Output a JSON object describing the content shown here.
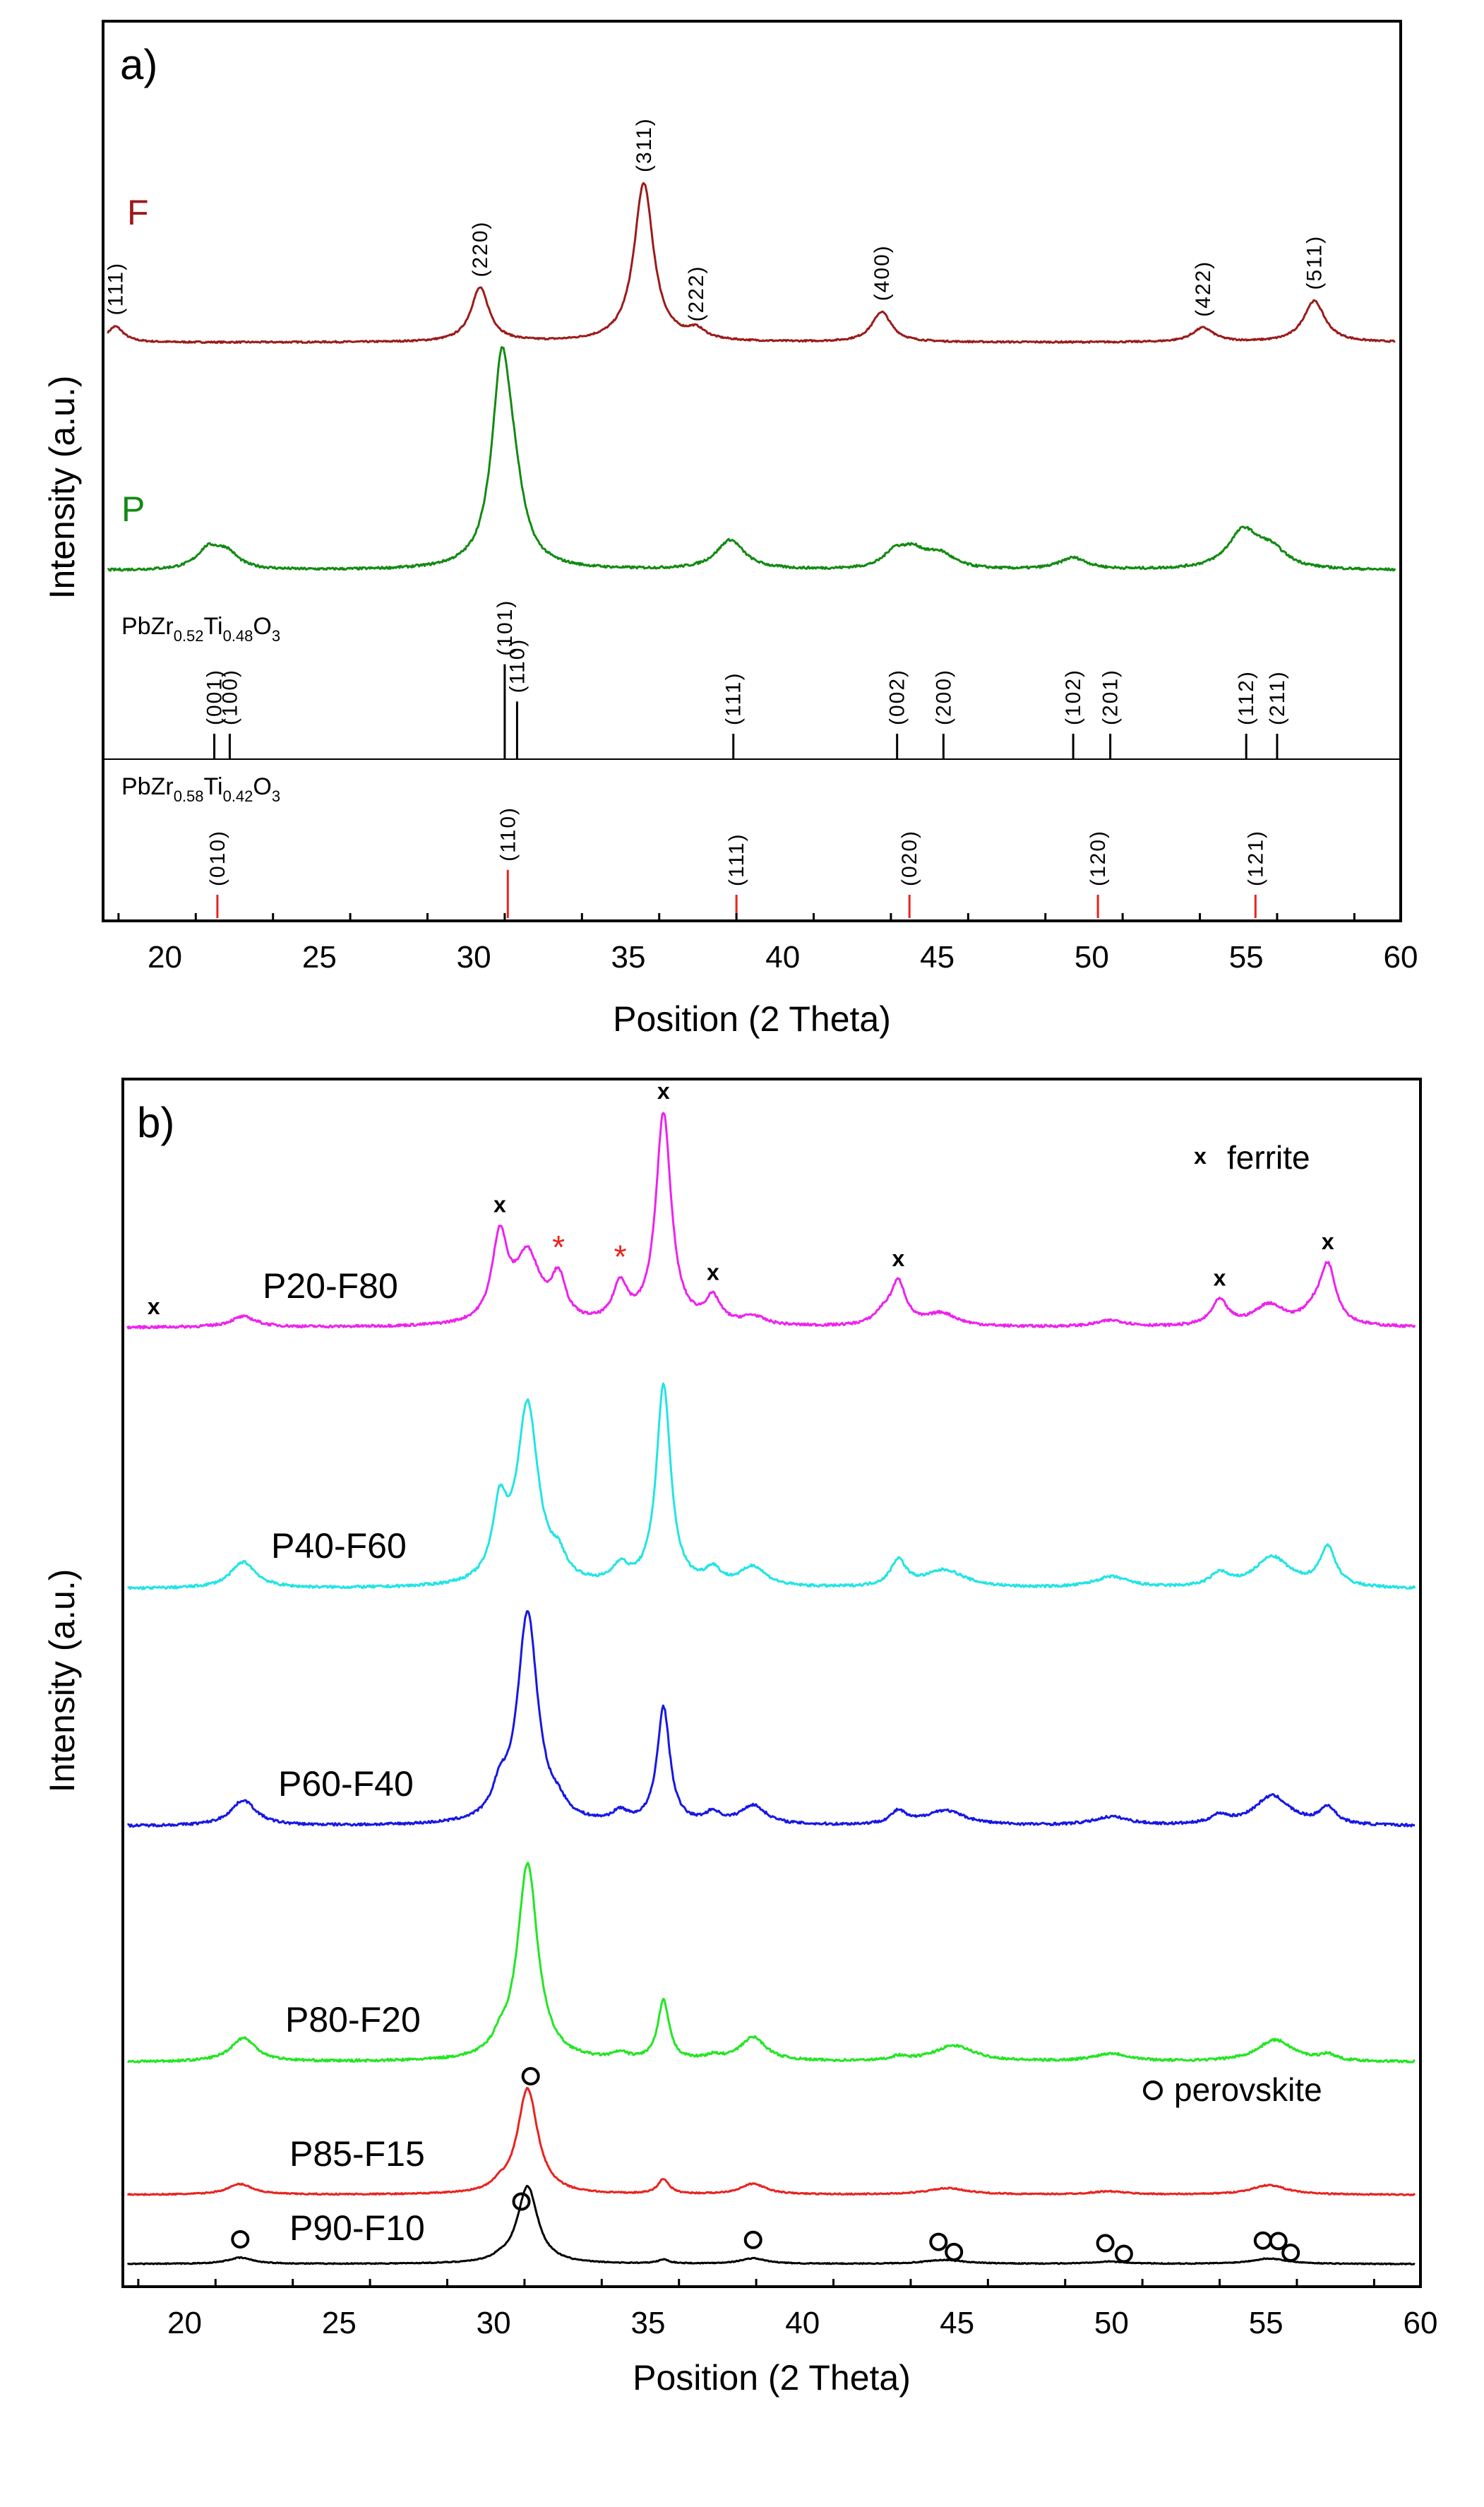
{
  "chart_data": [
    {
      "panel": "a)",
      "type": "line",
      "title": "",
      "xlabel": "Position (2 Theta)",
      "ylabel": "Intensity (a.u.)",
      "xlim": [
        18,
        60
      ],
      "x_ticks": [
        20,
        25,
        30,
        35,
        40,
        45,
        50,
        55,
        60
      ],
      "series": [
        {
          "name": "F",
          "color": "#9b1b1b",
          "peaks": [
            {
              "pos": 18.4,
              "height": 0.1,
              "width": 0.32,
              "hkl": "(111)"
            },
            {
              "pos": 30.2,
              "height": 0.34,
              "width": 0.36,
              "hkl": "(220)"
            },
            {
              "pos": 35.5,
              "height": 1.0,
              "width": 0.38,
              "hkl": "(311)"
            },
            {
              "pos": 37.2,
              "height": 0.06,
              "width": 0.35,
              "hkl": "(222)"
            },
            {
              "pos": 43.2,
              "height": 0.19,
              "width": 0.38,
              "hkl": "(400)"
            },
            {
              "pos": 53.6,
              "height": 0.09,
              "width": 0.42,
              "hkl": "(422)"
            },
            {
              "pos": 57.2,
              "height": 0.26,
              "width": 0.42,
              "hkl": "(511)"
            }
          ]
        },
        {
          "name": "P",
          "color": "#138a13",
          "peaks": [
            {
              "pos": 21.4,
              "height": 0.1,
              "width": 0.45
            },
            {
              "pos": 22.0,
              "height": 0.08,
              "width": 0.45
            },
            {
              "pos": 30.9,
              "height": 1.0,
              "width": 0.38
            },
            {
              "pos": 31.3,
              "height": 0.25,
              "width": 0.4
            },
            {
              "pos": 38.3,
              "height": 0.15,
              "width": 0.55
            },
            {
              "pos": 43.6,
              "height": 0.07,
              "width": 0.4
            },
            {
              "pos": 44.2,
              "height": 0.09,
              "width": 0.55
            },
            {
              "pos": 45.1,
              "height": 0.07,
              "width": 0.55
            },
            {
              "pos": 49.4,
              "height": 0.06,
              "width": 0.55
            },
            {
              "pos": 54.9,
              "height": 0.19,
              "width": 0.6
            },
            {
              "pos": 55.8,
              "height": 0.09,
              "width": 0.6
            }
          ]
        }
      ],
      "references": [
        {
          "formula": "PbZr0.52Ti0.48O3",
          "formula_main": "PbZr",
          "formula_parts": [
            "0.52",
            "Ti",
            "0.48",
            "O",
            "3"
          ],
          "color": "#000000",
          "lines": [
            {
              "pos": 21.6,
              "rel": 0.15,
              "hkl": "(001)"
            },
            {
              "pos": 22.1,
              "rel": 0.15,
              "hkl": "(100)"
            },
            {
              "pos": 31.0,
              "rel": 0.56,
              "hkl": "(101)"
            },
            {
              "pos": 31.4,
              "rel": 0.34,
              "hkl": "(110)"
            },
            {
              "pos": 38.4,
              "rel": 0.15,
              "hkl": "(111)"
            },
            {
              "pos": 43.7,
              "rel": 0.15,
              "hkl": "(002)"
            },
            {
              "pos": 45.2,
              "rel": 0.15,
              "hkl": "(200)"
            },
            {
              "pos": 49.4,
              "rel": 0.15,
              "hkl": "(102)"
            },
            {
              "pos": 50.6,
              "rel": 0.15,
              "hkl": "(201)"
            },
            {
              "pos": 55.0,
              "rel": 0.15,
              "hkl": "(112)"
            },
            {
              "pos": 56.0,
              "rel": 0.15,
              "hkl": "(211)"
            }
          ]
        },
        {
          "formula": "PbZr0.58Ti0.42O3",
          "formula_main": "PbZr",
          "formula_parts": [
            "0.58",
            "Ti",
            "0.42",
            "O",
            "3"
          ],
          "color": "#e8231f",
          "lines": [
            {
              "pos": 21.7,
              "rel": 0.3,
              "hkl": "(010)"
            },
            {
              "pos": 31.1,
              "rel": 0.62,
              "hkl": "(110)"
            },
            {
              "pos": 38.5,
              "rel": 0.3,
              "hkl": "(111)"
            },
            {
              "pos": 44.1,
              "rel": 0.3,
              "hkl": "(020)"
            },
            {
              "pos": 50.2,
              "rel": 0.3,
              "hkl": "(120)"
            },
            {
              "pos": 55.3,
              "rel": 0.3,
              "hkl": "(121)"
            }
          ]
        }
      ]
    },
    {
      "panel": "b)",
      "type": "line",
      "title": "",
      "xlabel": "Position (2 Theta)",
      "ylabel": "Intensity (a.u.)",
      "xlim": [
        18,
        60
      ],
      "x_ticks": [
        20,
        25,
        30,
        35,
        40,
        45,
        50,
        55,
        60
      ],
      "legend": [
        {
          "symbol": "x",
          "label": "ferrite",
          "placement": "top-right"
        },
        {
          "symbol": "o",
          "label": "perovskite",
          "placement": "bottom-right"
        }
      ],
      "series": [
        {
          "name": "P20-F80",
          "color": "#ee22ee",
          "peaks": [
            {
              "pos": 21.9,
              "height": 0.05,
              "width": 0.5
            },
            {
              "pos": 30.2,
              "height": 0.4,
              "width": 0.3
            },
            {
              "pos": 31.1,
              "height": 0.32,
              "width": 0.5
            },
            {
              "pos": 32.1,
              "height": 0.2,
              "width": 0.28
            },
            {
              "pos": 34.1,
              "height": 0.18,
              "width": 0.28
            },
            {
              "pos": 35.5,
              "height": 1.0,
              "width": 0.3
            },
            {
              "pos": 37.1,
              "height": 0.12,
              "width": 0.3
            },
            {
              "pos": 38.4,
              "height": 0.04,
              "width": 0.45
            },
            {
              "pos": 42.6,
              "height": 0.05,
              "width": 0.35
            },
            {
              "pos": 43.1,
              "height": 0.2,
              "width": 0.3
            },
            {
              "pos": 44.5,
              "height": 0.06,
              "width": 0.6
            },
            {
              "pos": 50.0,
              "height": 0.03,
              "width": 0.6
            },
            {
              "pos": 53.5,
              "height": 0.12,
              "width": 0.32
            },
            {
              "pos": 55.1,
              "height": 0.1,
              "width": 0.6
            },
            {
              "pos": 56.5,
              "height": 0.05,
              "width": 0.4
            },
            {
              "pos": 57.0,
              "height": 0.28,
              "width": 0.32
            }
          ]
        },
        {
          "name": "P40-F60",
          "color": "#22e4e4",
          "peaks": [
            {
              "pos": 21.9,
              "height": 0.12,
              "width": 0.5
            },
            {
              "pos": 30.2,
              "height": 0.32,
              "width": 0.28
            },
            {
              "pos": 31.1,
              "height": 0.82,
              "width": 0.42
            },
            {
              "pos": 32.1,
              "height": 0.09,
              "width": 0.3
            },
            {
              "pos": 34.1,
              "height": 0.08,
              "width": 0.3
            },
            {
              "pos": 35.5,
              "height": 0.92,
              "width": 0.28
            },
            {
              "pos": 37.1,
              "height": 0.07,
              "width": 0.3
            },
            {
              "pos": 38.4,
              "height": 0.09,
              "width": 0.5
            },
            {
              "pos": 43.1,
              "height": 0.12,
              "width": 0.3
            },
            {
              "pos": 44.6,
              "height": 0.08,
              "width": 0.8
            },
            {
              "pos": 50.0,
              "height": 0.05,
              "width": 0.7
            },
            {
              "pos": 53.5,
              "height": 0.06,
              "width": 0.35
            },
            {
              "pos": 55.2,
              "height": 0.14,
              "width": 0.7
            },
            {
              "pos": 57.0,
              "height": 0.18,
              "width": 0.32
            }
          ]
        },
        {
          "name": "P60-F40",
          "color": "#1717e6",
          "peaks": [
            {
              "pos": 21.9,
              "height": 0.12,
              "width": 0.5
            },
            {
              "pos": 30.2,
              "height": 0.12,
              "width": 0.28
            },
            {
              "pos": 31.1,
              "height": 1.0,
              "width": 0.4
            },
            {
              "pos": 32.1,
              "height": 0.05,
              "width": 0.3
            },
            {
              "pos": 34.1,
              "height": 0.05,
              "width": 0.3
            },
            {
              "pos": 35.5,
              "height": 0.55,
              "width": 0.25
            },
            {
              "pos": 37.1,
              "height": 0.05,
              "width": 0.3
            },
            {
              "pos": 38.4,
              "height": 0.09,
              "width": 0.5
            },
            {
              "pos": 43.1,
              "height": 0.06,
              "width": 0.3
            },
            {
              "pos": 44.6,
              "height": 0.07,
              "width": 0.8
            },
            {
              "pos": 50.0,
              "height": 0.04,
              "width": 0.7
            },
            {
              "pos": 53.5,
              "height": 0.04,
              "width": 0.35
            },
            {
              "pos": 55.2,
              "height": 0.14,
              "width": 0.7
            },
            {
              "pos": 57.0,
              "height": 0.08,
              "width": 0.32
            }
          ]
        },
        {
          "name": "P80-F20",
          "color": "#22e622",
          "peaks": [
            {
              "pos": 21.9,
              "height": 0.12,
              "width": 0.5
            },
            {
              "pos": 30.2,
              "height": 0.06,
              "width": 0.28
            },
            {
              "pos": 31.1,
              "height": 1.0,
              "width": 0.4
            },
            {
              "pos": 34.1,
              "height": 0.03,
              "width": 0.3
            },
            {
              "pos": 35.5,
              "height": 0.3,
              "width": 0.22
            },
            {
              "pos": 37.1,
              "height": 0.02,
              "width": 0.3
            },
            {
              "pos": 38.4,
              "height": 0.12,
              "width": 0.5
            },
            {
              "pos": 43.1,
              "height": 0.02,
              "width": 0.3
            },
            {
              "pos": 44.9,
              "height": 0.08,
              "width": 0.8
            },
            {
              "pos": 50.0,
              "height": 0.04,
              "width": 0.7
            },
            {
              "pos": 55.3,
              "height": 0.11,
              "width": 0.7
            },
            {
              "pos": 57.0,
              "height": 0.03,
              "width": 0.32
            }
          ]
        },
        {
          "name": "P85-F15",
          "color": "#e8231f",
          "peaks": [
            {
              "pos": 21.8,
              "height": 0.1,
              "width": 0.5
            },
            {
              "pos": 30.2,
              "height": 0.05,
              "width": 0.28
            },
            {
              "pos": 31.1,
              "height": 1.0,
              "width": 0.4
            },
            {
              "pos": 35.5,
              "height": 0.14,
              "width": 0.22
            },
            {
              "pos": 38.4,
              "height": 0.1,
              "width": 0.5
            },
            {
              "pos": 44.7,
              "height": 0.06,
              "width": 0.8
            },
            {
              "pos": 49.9,
              "height": 0.03,
              "width": 0.7
            },
            {
              "pos": 55.1,
              "height": 0.09,
              "width": 0.7
            }
          ]
        },
        {
          "name": "P90-F10",
          "color": "#000000",
          "peaks": [
            {
              "pos": 21.8,
              "height": 0.08,
              "width": 0.5
            },
            {
              "pos": 30.2,
              "height": 0.03,
              "width": 0.28
            },
            {
              "pos": 31.1,
              "height": 1.0,
              "width": 0.4
            },
            {
              "pos": 35.5,
              "height": 0.05,
              "width": 0.22
            },
            {
              "pos": 38.4,
              "height": 0.07,
              "width": 0.5
            },
            {
              "pos": 44.6,
              "height": 0.05,
              "width": 0.8
            },
            {
              "pos": 49.9,
              "height": 0.03,
              "width": 0.7
            },
            {
              "pos": 55.1,
              "height": 0.07,
              "width": 0.7
            }
          ]
        }
      ],
      "ferrite_marks": [
        {
          "series": "P20-F80",
          "pos": 19.0
        },
        {
          "series": "P20-F80",
          "pos": 30.2
        },
        {
          "series": "P20-F80",
          "pos": 35.5
        },
        {
          "series": "P20-F80",
          "pos": 37.1
        },
        {
          "series": "P20-F80",
          "pos": 43.1
        },
        {
          "series": "P20-F80",
          "pos": 53.5
        },
        {
          "series": "P20-F80",
          "pos": 57.0
        }
      ],
      "impurity_marks": [
        {
          "series": "P20-F80",
          "pos": 32.1,
          "symbol": "*"
        },
        {
          "series": "P20-F80",
          "pos": 34.1,
          "symbol": "*"
        }
      ],
      "perovskite_marks": [
        {
          "series": "P90-F10",
          "pos": 21.8
        },
        {
          "series": "P90-F10",
          "pos": 30.9
        },
        {
          "series": "P85-F15",
          "pos": 31.2
        },
        {
          "series": "P90-F10",
          "pos": 38.4
        },
        {
          "series": "P90-F10",
          "pos": 44.4
        },
        {
          "series": "P90-F10",
          "pos": 44.9
        },
        {
          "series": "P90-F10",
          "pos": 49.8
        },
        {
          "series": "P90-F10",
          "pos": 50.4
        },
        {
          "series": "P90-F10",
          "pos": 54.9
        },
        {
          "series": "P90-F10",
          "pos": 55.4
        },
        {
          "series": "P90-F10",
          "pos": 55.8
        }
      ]
    }
  ]
}
